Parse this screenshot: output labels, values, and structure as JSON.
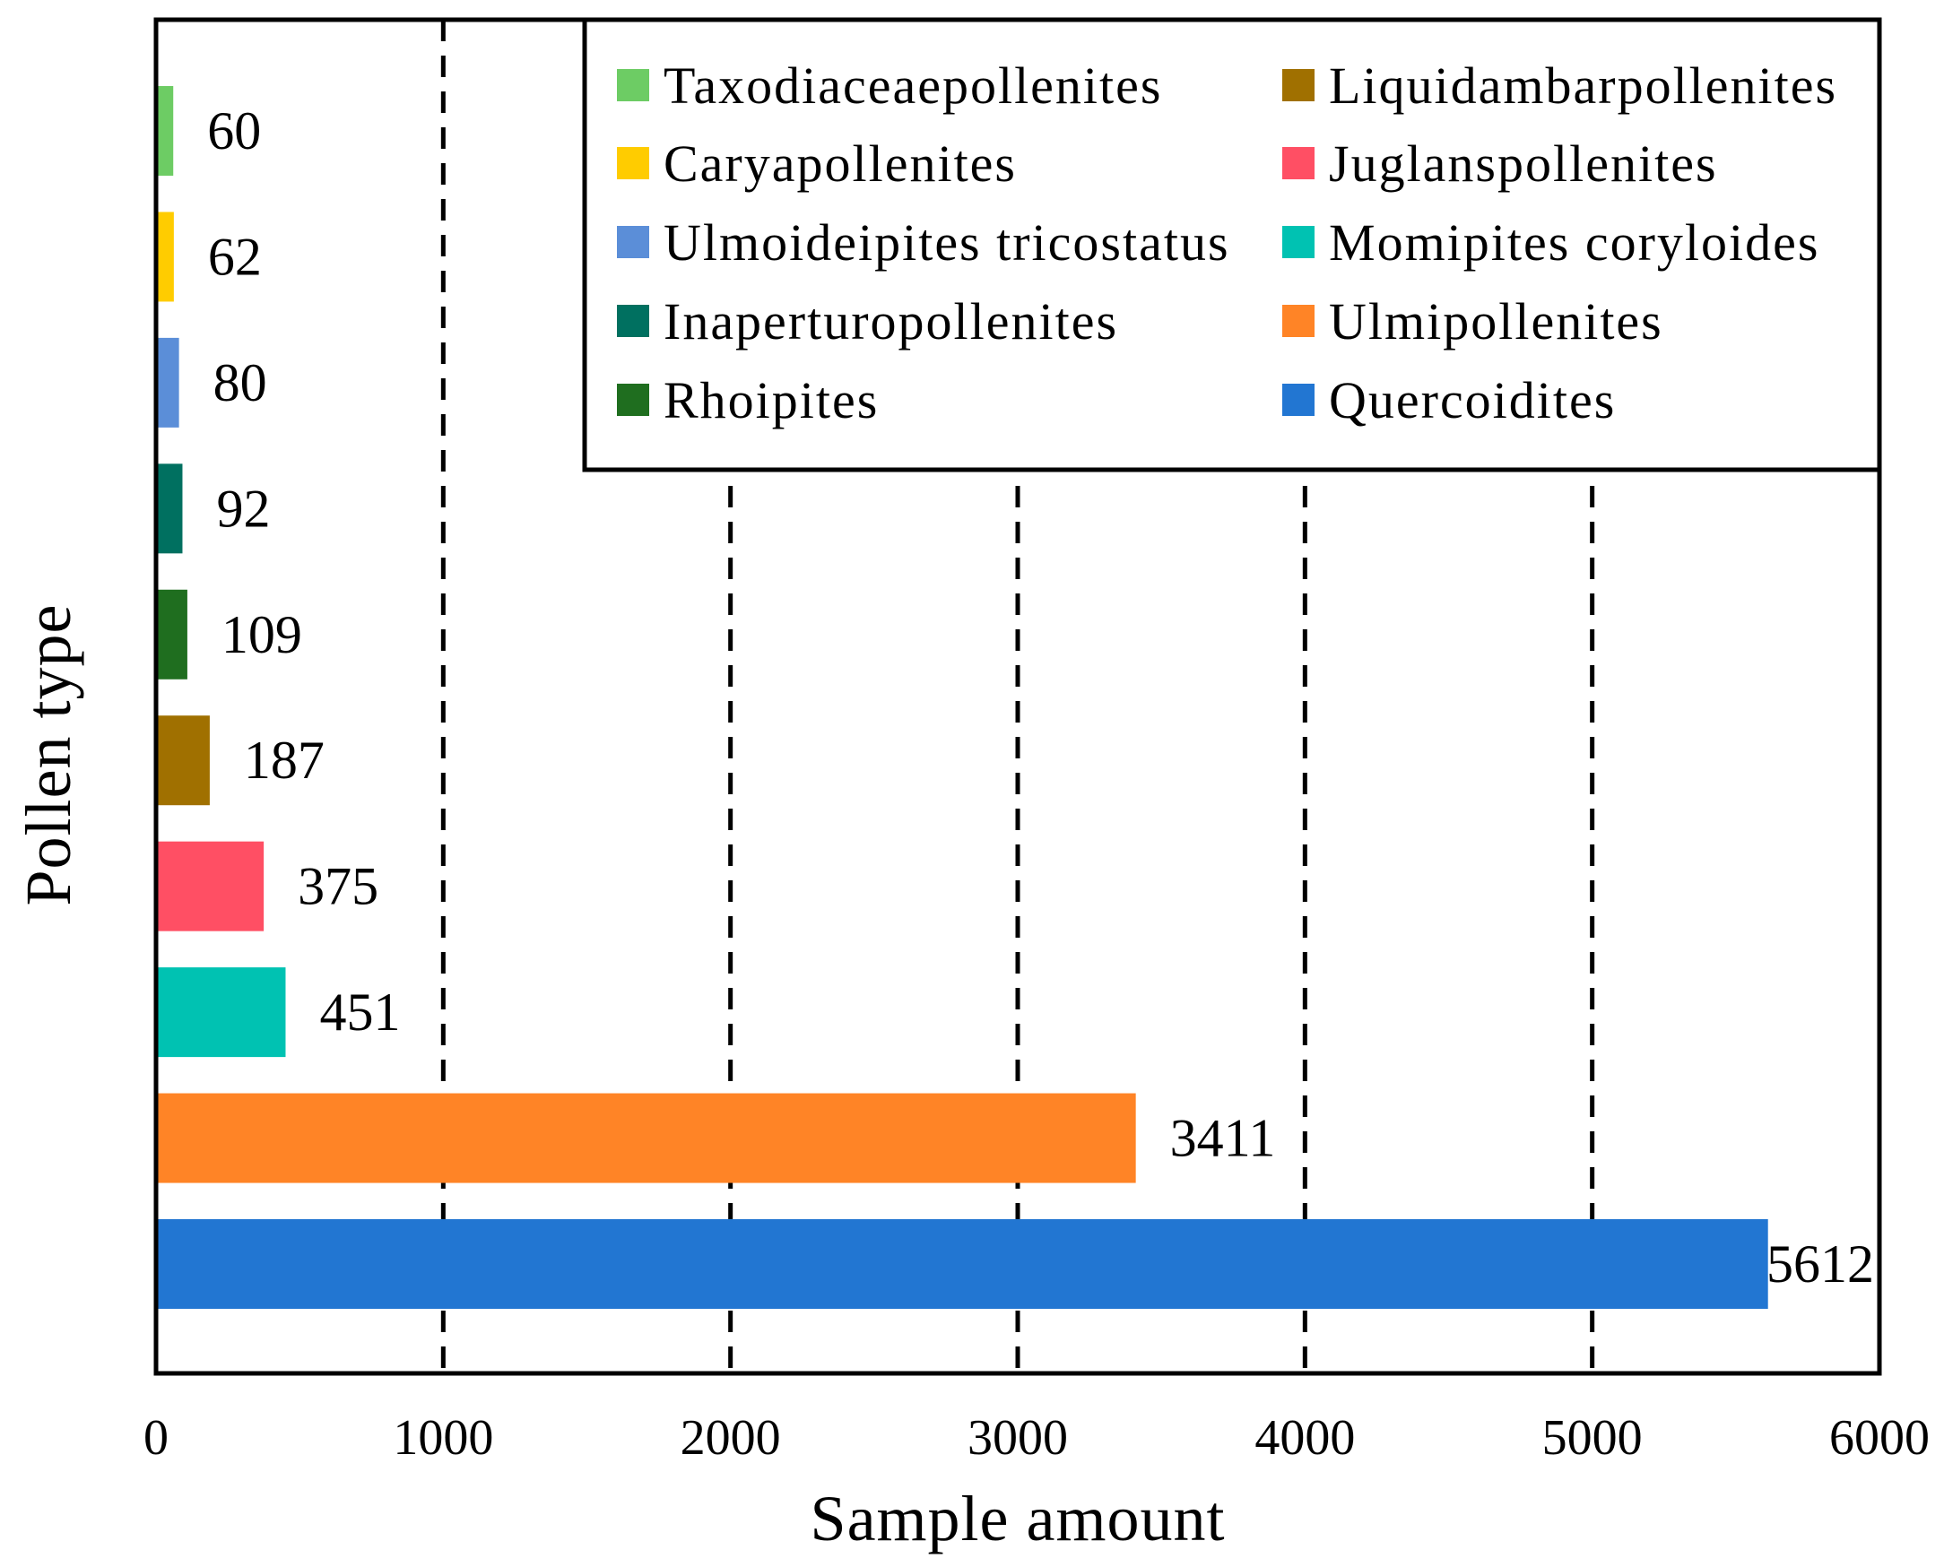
{
  "chart_data": {
    "type": "bar",
    "orientation": "horizontal",
    "xlabel": "Sample amount",
    "ylabel": "Pollen type",
    "xlim": [
      0,
      6000
    ],
    "xticks": [
      "0",
      "1000",
      "2000",
      "3000",
      "4000",
      "5000",
      "6000"
    ],
    "gridlines": [
      1000,
      2000,
      3000,
      4000,
      5000
    ],
    "grid_style": "dashed vertical",
    "legend_position": "top-right",
    "series": [
      {
        "name": "Taxodiaceaepollenites",
        "value": 60,
        "label": "60",
        "color": "#6DCC64"
      },
      {
        "name": "Caryapollenites",
        "value": 62,
        "label": "62",
        "color": "#FFCC00"
      },
      {
        "name": "Ulmoideipites tricostatus",
        "value": 80,
        "label": "80",
        "color": "#5B8ED8"
      },
      {
        "name": "Inaperturopollenites",
        "value": 92,
        "label": "92",
        "color": "#007060"
      },
      {
        "name": "Rhoipites",
        "value": 109,
        "label": "109",
        "color": "#1F6E1F"
      },
      {
        "name": "Liquidambarpollenites",
        "value": 187,
        "label": "187",
        "color": "#A07000"
      },
      {
        "name": "Juglanspollenites",
        "value": 375,
        "label": "375",
        "color": "#FF4F64"
      },
      {
        "name": "Momipites coryloides",
        "value": 451,
        "label": "451",
        "color": "#00C2B2"
      },
      {
        "name": "Ulmipollenites",
        "value": 3411,
        "label": "3411",
        "color": "#FF8426"
      },
      {
        "name": "Quercoidites",
        "value": 5612,
        "label": "5612",
        "color": "#2276D2"
      }
    ]
  }
}
